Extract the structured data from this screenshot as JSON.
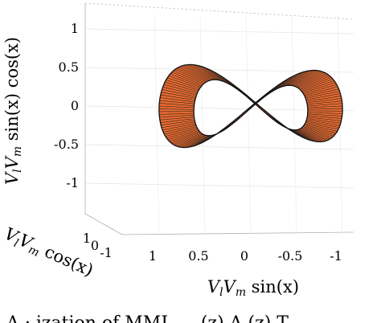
{
  "chart_data": {
    "type": "surface",
    "series": [],
    "xlabel": "V_lV_m sin(x)",
    "ylabel": "V_lV_m cos(x)",
    "zlabel": "V_lV_m sin(x) cos(x)",
    "xlabel_parts": {
      "a": "V",
      "a_sub": "l",
      "b": "V",
      "b_sub": "m",
      "rest": " sin(x)"
    },
    "ylabel_parts": {
      "a": "V",
      "a_sub": "l",
      "b": "V",
      "b_sub": "m",
      "rest": " cos(x)"
    },
    "zlabel_parts": {
      "a": "V",
      "a_sub": "l",
      "b": "V",
      "b_sub": "m",
      "rest": " sin(x) cos(x)"
    },
    "x_ticks": [
      "1",
      "0.5",
      "0",
      "-0.5",
      "-1"
    ],
    "y_ticks": [
      "1",
      "0",
      "-1"
    ],
    "z_ticks": [
      "1",
      "0.5",
      "0",
      "-0.5",
      "-1"
    ],
    "xlim": [
      1,
      -1
    ],
    "ylim": [
      -1,
      1
    ],
    "zlim": [
      -1.3,
      1.3
    ],
    "grid": true,
    "surface_color": "#e56a30",
    "edge_color": "#1a1a1a"
  },
  "caption_fragment": "A · ization of MML ... (z) A (z) T"
}
